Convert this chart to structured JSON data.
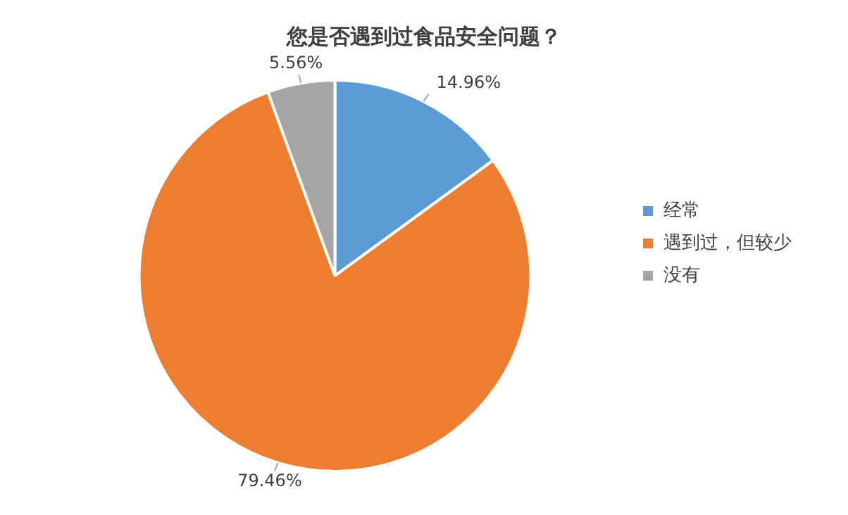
{
  "chart_data": {
    "type": "pie",
    "title": "您是否遇到过食品安全问题？",
    "categories": [
      "经常",
      "遇到过，但较少",
      "没有"
    ],
    "values": [
      14.96,
      79.46,
      5.56
    ],
    "colors": [
      "#5b9bd5",
      "#ed7d31",
      "#a5a5a5"
    ],
    "value_labels": [
      "14.96%",
      "79.46%",
      "5.56%"
    ],
    "legend": "right"
  }
}
